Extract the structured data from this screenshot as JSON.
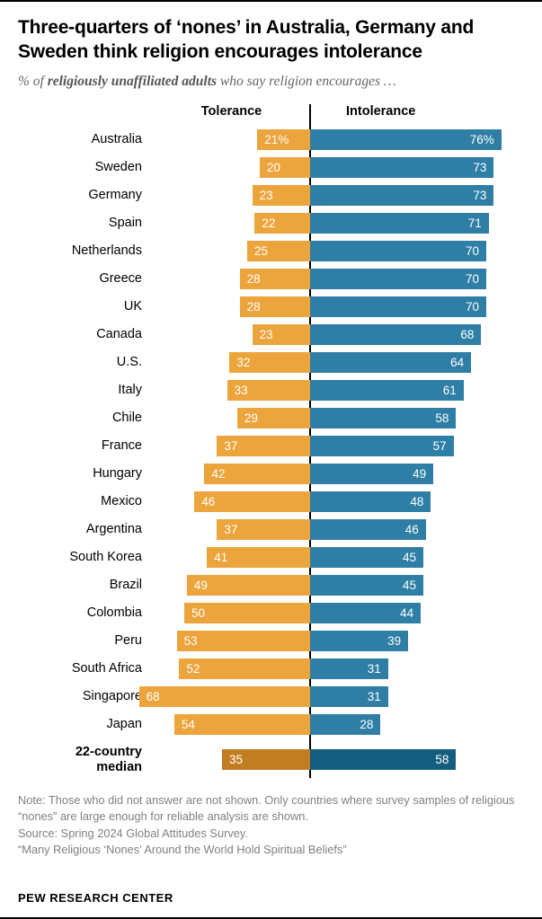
{
  "header": {
    "title": "Three-quarters of ‘nones’ in Australia, Germany and Sweden think religion encourages intolerance",
    "subtitle_prefix": "% of ",
    "subtitle_bold": "religiously unaffiliated adults",
    "subtitle_suffix": " who say religion encourages …"
  },
  "chart_data": {
    "type": "bar",
    "variant": "diverging-horizontal",
    "column_headers": [
      "Tolerance",
      "Intolerance"
    ],
    "categories": [
      "Australia",
      "Sweden",
      "Germany",
      "Spain",
      "Netherlands",
      "Greece",
      "UK",
      "Canada",
      "U.S.",
      "Italy",
      "Chile",
      "France",
      "Hungary",
      "Mexico",
      "Argentina",
      "South Korea",
      "Brazil",
      "Colombia",
      "Peru",
      "South Africa",
      "Singapore",
      "Japan",
      "22-country median"
    ],
    "series": [
      {
        "name": "Tolerance",
        "color": "#ECA43D",
        "values": [
          21,
          20,
          23,
          22,
          25,
          28,
          28,
          23,
          32,
          33,
          29,
          37,
          42,
          46,
          37,
          41,
          49,
          50,
          53,
          52,
          68,
          54,
          35
        ]
      },
      {
        "name": "Intolerance",
        "color": "#2E7EA5",
        "values": [
          76,
          73,
          73,
          71,
          70,
          70,
          70,
          68,
          64,
          61,
          58,
          57,
          49,
          48,
          46,
          45,
          45,
          44,
          39,
          31,
          31,
          28,
          58
        ]
      }
    ],
    "median_category": "22-country median",
    "median_colors": {
      "Tolerance": "#C17D22",
      "Intolerance": "#135E7F"
    },
    "first_row_value_suffix": "%",
    "xlim": [
      0,
      80
    ],
    "legend_position": "column-headers",
    "grid": false
  },
  "notes": [
    "Note: Those who did not answer are not shown. Only countries where survey samples of religious “nones” are large enough for reliable analysis are shown.",
    "Source: Spring 2024 Global Attitudes Survey.",
    "“Many Religious ‘Nones’ Around the World Hold Spiritual Beliefs”"
  ],
  "footer": {
    "brand": "PEW RESEARCH CENTER"
  }
}
